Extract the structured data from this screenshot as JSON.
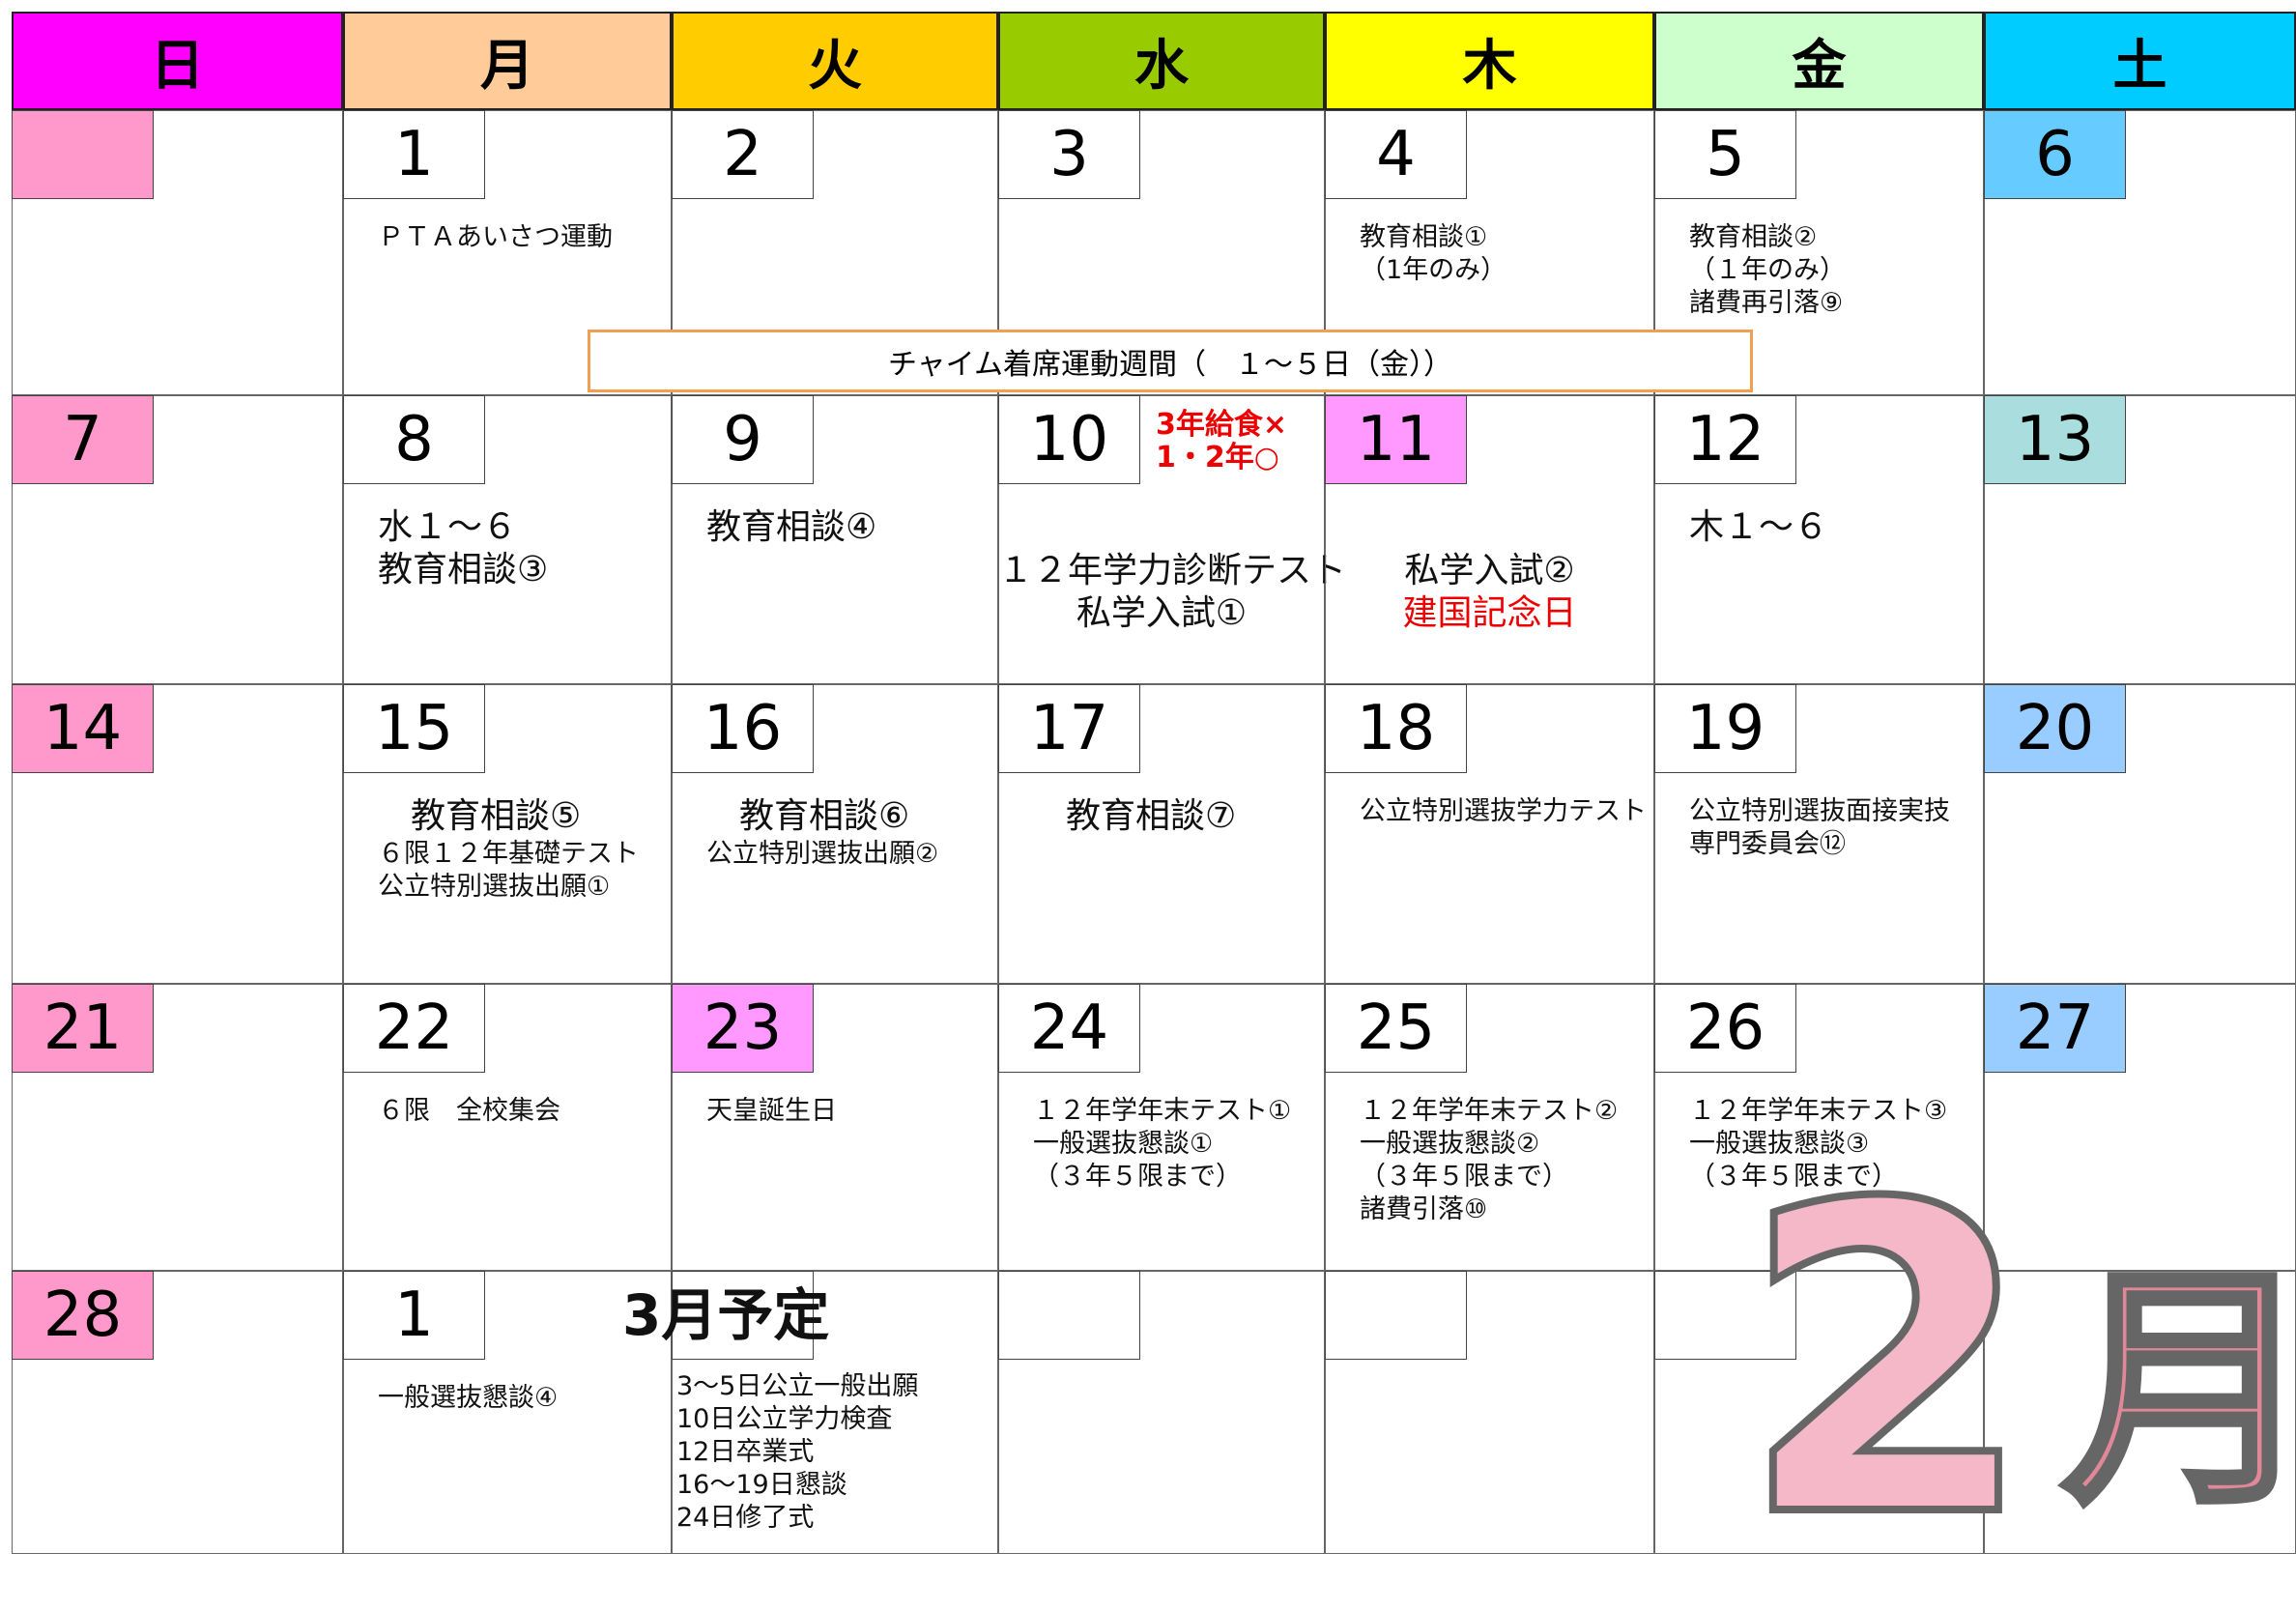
{
  "headers": [
    "日",
    "月",
    "火",
    "水",
    "木",
    "金",
    "土"
  ],
  "weeks": [
    [
      {},
      {
        "day": "1",
        "notes": [
          "ＰＴＡあいさつ運動"
        ]
      },
      {
        "day": "2"
      },
      {
        "day": "3"
      },
      {
        "day": "4",
        "notes": [
          "教育相談①",
          "（1年のみ）"
        ]
      },
      {
        "day": "5",
        "notes": [
          "教育相談②",
          "（１年のみ）",
          "諸費再引落⑨"
        ]
      },
      {
        "day": "6"
      }
    ],
    [
      {
        "day": "7"
      },
      {
        "day": "8",
        "notes": [
          "水１～６",
          "教育相談③"
        ]
      },
      {
        "day": "9",
        "notes": [
          "教育相談④"
        ]
      },
      {
        "day": "10",
        "side": [
          "3年給食×",
          "1・2年○"
        ],
        "notes": [
          "１２年学力診断テスト",
          "私学入試①"
        ]
      },
      {
        "day": "11",
        "notes": [
          "私学入試②"
        ],
        "holiday": "建国記念日"
      },
      {
        "day": "12",
        "notes": [
          "木１～６"
        ]
      },
      {
        "day": "13"
      }
    ],
    [
      {
        "day": "14"
      },
      {
        "day": "15",
        "notes": [
          "教育相談⑤",
          "６限１２年基礎テスト",
          "公立特別選抜出願①"
        ]
      },
      {
        "day": "16",
        "notes": [
          "教育相談⑥",
          "公立特別選抜出願②"
        ]
      },
      {
        "day": "17",
        "notes": [
          "教育相談⑦"
        ]
      },
      {
        "day": "18",
        "notes": [
          "公立特別選抜学力テスト"
        ]
      },
      {
        "day": "19",
        "notes": [
          "公立特別選抜面接実技",
          "専門委員会⑫"
        ]
      },
      {
        "day": "20"
      }
    ],
    [
      {
        "day": "21"
      },
      {
        "day": "22",
        "notes": [
          "６限　全校集会"
        ]
      },
      {
        "day": "23",
        "notes": [
          "天皇誕生日"
        ]
      },
      {
        "day": "24",
        "notes": [
          "１２年学年末テスト①",
          "一般選抜懇談①",
          "（３年５限まで）"
        ]
      },
      {
        "day": "25",
        "notes": [
          "１２年学年末テスト②",
          "一般選抜懇談②",
          "（３年５限まで）",
          "諸費引落⑩"
        ]
      },
      {
        "day": "26",
        "notes": [
          "１２年学年末テスト③",
          "一般選抜懇談③",
          "（３年５限まで）"
        ]
      },
      {
        "day": "27"
      }
    ],
    [
      {
        "day": "28"
      },
      {
        "day": "1",
        "notes": [
          "一般選抜懇談④"
        ]
      },
      {},
      {},
      {},
      {},
      {}
    ]
  ],
  "banner": "チャイム着席運動週間（　１～５日（金））",
  "march_plan": {
    "heading": "3月予定",
    "items": [
      "3～5日公立一般出願",
      "10日公立学力検査",
      "12日卒業式",
      "16～19日懇談",
      "24日修了式"
    ]
  },
  "month_title": {
    "number": "2",
    "unit": "月"
  }
}
